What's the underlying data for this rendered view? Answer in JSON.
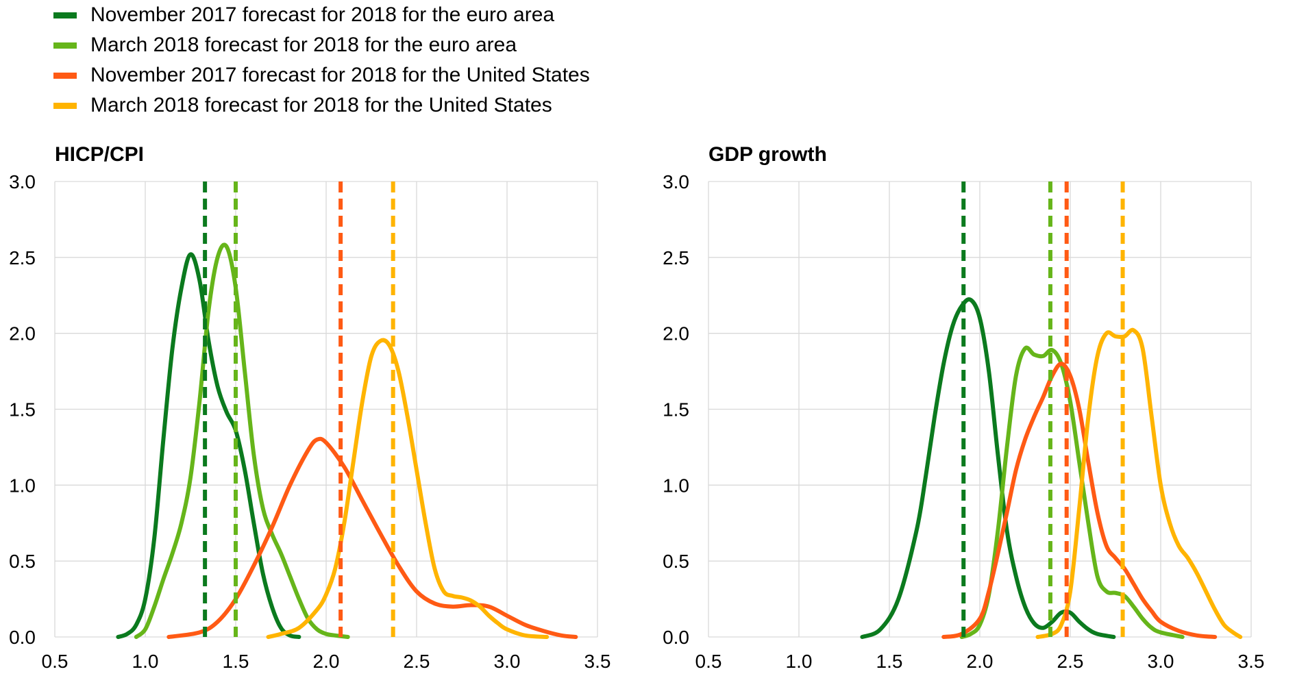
{
  "legend": [
    {
      "label": "November 2017 forecast for 2018 for the euro area",
      "color": "#0b7a1e"
    },
    {
      "label": "March 2018 forecast for 2018 for the euro area",
      "color": "#66b51a"
    },
    {
      "label": "November 2017 forecast for 2018 for the United States",
      "color": "#ff5a14"
    },
    {
      "label": "March 2018 forecast for 2018 for the United States",
      "color": "#ffb400"
    }
  ],
  "chart_data": [
    {
      "type": "line",
      "title": "HICP/CPI",
      "xlim": [
        0.5,
        3.5
      ],
      "ylim": [
        0,
        3.0
      ],
      "x_ticks": [
        "0.5",
        "1.0",
        "1.5",
        "2.0",
        "2.5",
        "3.0",
        "3.5"
      ],
      "y_ticks": [
        "0.0",
        "0.5",
        "1.0",
        "1.5",
        "2.0",
        "2.5",
        "3.0"
      ],
      "grid": true,
      "series": [
        {
          "name": "November 2017 forecast for 2018 for the euro area",
          "color": "#0b7a1e",
          "points": [
            [
              0.85,
              0.0
            ],
            [
              0.9,
              0.02
            ],
            [
              0.95,
              0.08
            ],
            [
              1.0,
              0.25
            ],
            [
              1.05,
              0.65
            ],
            [
              1.1,
              1.3
            ],
            [
              1.15,
              1.9
            ],
            [
              1.2,
              2.3
            ],
            [
              1.25,
              2.52
            ],
            [
              1.3,
              2.35
            ],
            [
              1.35,
              1.95
            ],
            [
              1.4,
              1.65
            ],
            [
              1.45,
              1.48
            ],
            [
              1.5,
              1.36
            ],
            [
              1.55,
              1.1
            ],
            [
              1.6,
              0.75
            ],
            [
              1.65,
              0.42
            ],
            [
              1.7,
              0.2
            ],
            [
              1.75,
              0.06
            ],
            [
              1.8,
              0.01
            ],
            [
              1.85,
              0.0
            ]
          ],
          "mean": 1.33
        },
        {
          "name": "March 2018 forecast for 2018 for the euro area",
          "color": "#66b51a",
          "points": [
            [
              0.95,
              0.0
            ],
            [
              1.0,
              0.05
            ],
            [
              1.05,
              0.2
            ],
            [
              1.1,
              0.38
            ],
            [
              1.15,
              0.55
            ],
            [
              1.2,
              0.75
            ],
            [
              1.25,
              1.05
            ],
            [
              1.3,
              1.55
            ],
            [
              1.35,
              2.15
            ],
            [
              1.4,
              2.5
            ],
            [
              1.45,
              2.57
            ],
            [
              1.5,
              2.3
            ],
            [
              1.55,
              1.75
            ],
            [
              1.6,
              1.2
            ],
            [
              1.65,
              0.85
            ],
            [
              1.7,
              0.68
            ],
            [
              1.75,
              0.55
            ],
            [
              1.8,
              0.4
            ],
            [
              1.85,
              0.25
            ],
            [
              1.9,
              0.12
            ],
            [
              1.95,
              0.05
            ],
            [
              2.0,
              0.02
            ],
            [
              2.05,
              0.01
            ],
            [
              2.12,
              0.0
            ]
          ],
          "mean": 1.5
        },
        {
          "name": "November 2017 forecast for 2018 for the United States",
          "color": "#ff5a14",
          "points": [
            [
              1.13,
              0.0
            ],
            [
              1.3,
              0.03
            ],
            [
              1.4,
              0.1
            ],
            [
              1.5,
              0.25
            ],
            [
              1.6,
              0.47
            ],
            [
              1.7,
              0.72
            ],
            [
              1.8,
              1.0
            ],
            [
              1.9,
              1.23
            ],
            [
              1.95,
              1.3
            ],
            [
              2.0,
              1.28
            ],
            [
              2.1,
              1.12
            ],
            [
              2.2,
              0.9
            ],
            [
              2.3,
              0.68
            ],
            [
              2.4,
              0.47
            ],
            [
              2.5,
              0.3
            ],
            [
              2.6,
              0.22
            ],
            [
              2.7,
              0.2
            ],
            [
              2.8,
              0.21
            ],
            [
              2.9,
              0.2
            ],
            [
              3.0,
              0.14
            ],
            [
              3.1,
              0.08
            ],
            [
              3.2,
              0.04
            ],
            [
              3.3,
              0.01
            ],
            [
              3.38,
              0.0
            ]
          ],
          "mean": 2.08
        },
        {
          "name": "March 2018 forecast for 2018 for the United States",
          "color": "#ffb400",
          "points": [
            [
              1.68,
              0.0
            ],
            [
              1.75,
              0.02
            ],
            [
              1.85,
              0.06
            ],
            [
              1.95,
              0.18
            ],
            [
              2.0,
              0.28
            ],
            [
              2.05,
              0.45
            ],
            [
              2.1,
              0.75
            ],
            [
              2.15,
              1.15
            ],
            [
              2.2,
              1.55
            ],
            [
              2.25,
              1.85
            ],
            [
              2.3,
              1.95
            ],
            [
              2.35,
              1.92
            ],
            [
              2.4,
              1.75
            ],
            [
              2.45,
              1.45
            ],
            [
              2.5,
              1.1
            ],
            [
              2.55,
              0.75
            ],
            [
              2.6,
              0.45
            ],
            [
              2.65,
              0.3
            ],
            [
              2.7,
              0.27
            ],
            [
              2.75,
              0.26
            ],
            [
              2.8,
              0.24
            ],
            [
              2.85,
              0.2
            ],
            [
              2.9,
              0.14
            ],
            [
              2.95,
              0.09
            ],
            [
              3.0,
              0.05
            ],
            [
              3.1,
              0.01
            ],
            [
              3.22,
              0.0
            ]
          ],
          "mean": 2.37
        }
      ]
    },
    {
      "type": "line",
      "title": "GDP growth",
      "xlim": [
        0.5,
        3.5
      ],
      "ylim": [
        0,
        3.0
      ],
      "x_ticks": [
        "0.5",
        "1.0",
        "1.5",
        "2.0",
        "2.5",
        "3.0",
        "3.5"
      ],
      "y_ticks": [
        "0.0",
        "0.5",
        "1.0",
        "1.5",
        "2.0",
        "2.5",
        "3.0"
      ],
      "grid": true,
      "series": [
        {
          "name": "November 2017 forecast for 2018 for the euro area",
          "color": "#0b7a1e",
          "points": [
            [
              1.35,
              0.0
            ],
            [
              1.45,
              0.05
            ],
            [
              1.55,
              0.25
            ],
            [
              1.65,
              0.7
            ],
            [
              1.7,
              1.05
            ],
            [
              1.75,
              1.45
            ],
            [
              1.8,
              1.8
            ],
            [
              1.85,
              2.05
            ],
            [
              1.9,
              2.18
            ],
            [
              1.95,
              2.22
            ],
            [
              2.0,
              2.1
            ],
            [
              2.05,
              1.75
            ],
            [
              2.1,
              1.2
            ],
            [
              2.15,
              0.7
            ],
            [
              2.2,
              0.4
            ],
            [
              2.25,
              0.2
            ],
            [
              2.3,
              0.09
            ],
            [
              2.35,
              0.06
            ],
            [
              2.4,
              0.1
            ],
            [
              2.45,
              0.16
            ],
            [
              2.5,
              0.16
            ],
            [
              2.55,
              0.1
            ],
            [
              2.6,
              0.05
            ],
            [
              2.65,
              0.02
            ],
            [
              2.74,
              0.0
            ]
          ],
          "mean": 1.91
        },
        {
          "name": "March 2018 forecast for 2018 for the euro area",
          "color": "#66b51a",
          "points": [
            [
              1.9,
              0.0
            ],
            [
              1.95,
              0.02
            ],
            [
              2.0,
              0.08
            ],
            [
              2.05,
              0.28
            ],
            [
              2.1,
              0.7
            ],
            [
              2.15,
              1.25
            ],
            [
              2.2,
              1.72
            ],
            [
              2.25,
              1.9
            ],
            [
              2.3,
              1.86
            ],
            [
              2.35,
              1.85
            ],
            [
              2.4,
              1.89
            ],
            [
              2.45,
              1.8
            ],
            [
              2.5,
              1.55
            ],
            [
              2.55,
              1.15
            ],
            [
              2.6,
              0.75
            ],
            [
              2.65,
              0.4
            ],
            [
              2.7,
              0.3
            ],
            [
              2.75,
              0.29
            ],
            [
              2.8,
              0.27
            ],
            [
              2.85,
              0.2
            ],
            [
              2.9,
              0.12
            ],
            [
              2.95,
              0.06
            ],
            [
              3.0,
              0.03
            ],
            [
              3.12,
              0.0
            ]
          ],
          "mean": 2.39
        },
        {
          "name": "November 2017 forecast for 2018 for the United States",
          "color": "#ff5a14",
          "points": [
            [
              1.8,
              0.0
            ],
            [
              1.9,
              0.02
            ],
            [
              2.0,
              0.12
            ],
            [
              2.05,
              0.3
            ],
            [
              2.1,
              0.55
            ],
            [
              2.15,
              0.82
            ],
            [
              2.2,
              1.1
            ],
            [
              2.25,
              1.3
            ],
            [
              2.3,
              1.45
            ],
            [
              2.35,
              1.58
            ],
            [
              2.4,
              1.72
            ],
            [
              2.45,
              1.8
            ],
            [
              2.5,
              1.72
            ],
            [
              2.55,
              1.5
            ],
            [
              2.6,
              1.15
            ],
            [
              2.65,
              0.82
            ],
            [
              2.7,
              0.6
            ],
            [
              2.75,
              0.52
            ],
            [
              2.8,
              0.45
            ],
            [
              2.85,
              0.35
            ],
            [
              2.9,
              0.25
            ],
            [
              2.95,
              0.17
            ],
            [
              3.0,
              0.1
            ],
            [
              3.1,
              0.04
            ],
            [
              3.2,
              0.01
            ],
            [
              3.3,
              0.0
            ]
          ],
          "mean": 2.48
        },
        {
          "name": "March 2018 forecast for 2018 for the United States",
          "color": "#ffb400",
          "points": [
            [
              2.32,
              0.0
            ],
            [
              2.4,
              0.02
            ],
            [
              2.45,
              0.08
            ],
            [
              2.5,
              0.3
            ],
            [
              2.55,
              0.85
            ],
            [
              2.6,
              1.45
            ],
            [
              2.65,
              1.85
            ],
            [
              2.7,
              2.0
            ],
            [
              2.75,
              1.98
            ],
            [
              2.8,
              1.98
            ],
            [
              2.85,
              2.02
            ],
            [
              2.9,
              1.9
            ],
            [
              2.95,
              1.45
            ],
            [
              3.0,
              1.0
            ],
            [
              3.05,
              0.75
            ],
            [
              3.1,
              0.6
            ],
            [
              3.15,
              0.52
            ],
            [
              3.2,
              0.42
            ],
            [
              3.25,
              0.3
            ],
            [
              3.3,
              0.18
            ],
            [
              3.35,
              0.08
            ],
            [
              3.4,
              0.03
            ],
            [
              3.44,
              0.0
            ]
          ],
          "mean": 2.79
        }
      ]
    }
  ]
}
